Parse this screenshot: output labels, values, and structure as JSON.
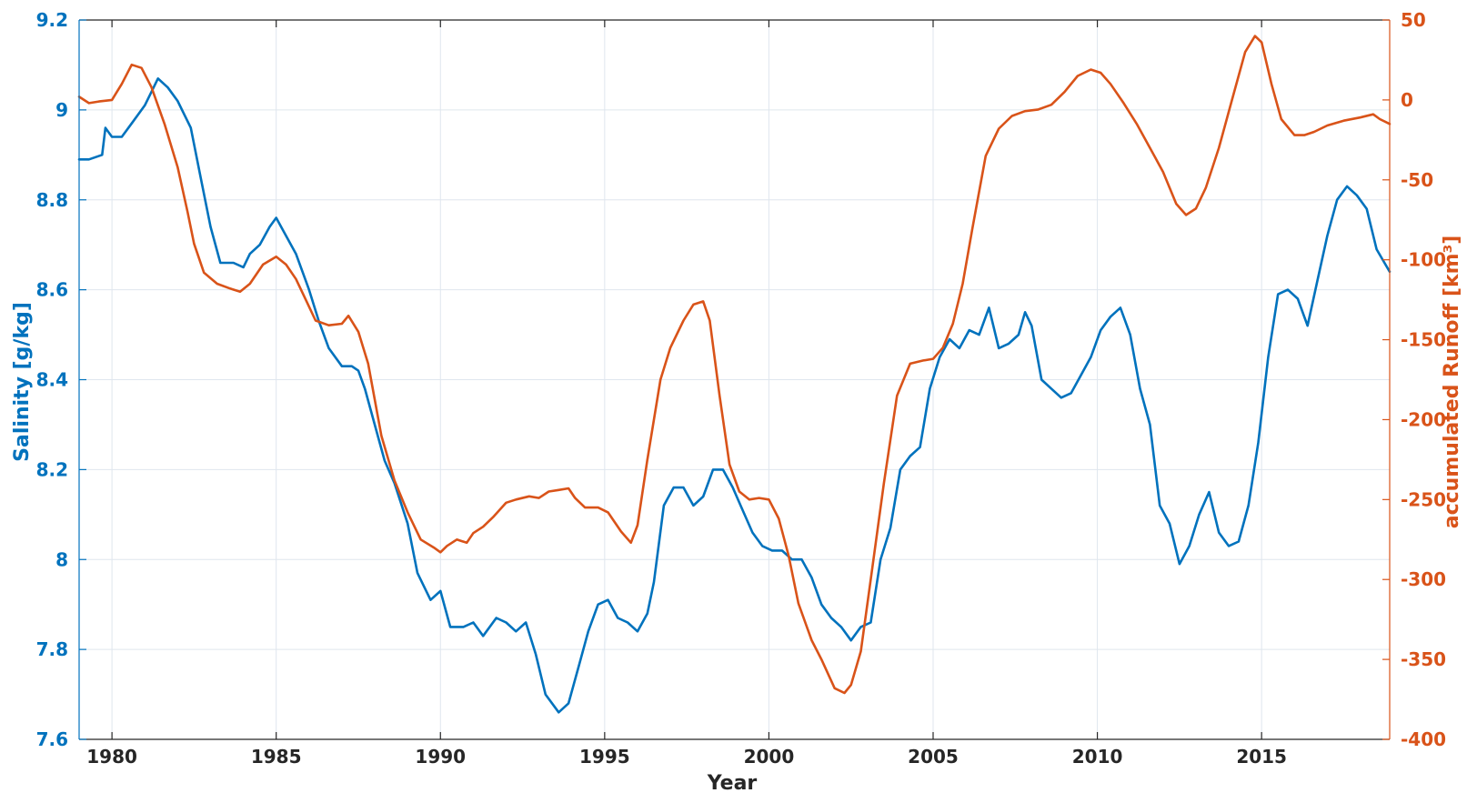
{
  "chart_data": {
    "type": "line",
    "xlabel": "Year",
    "ylabel_left": "Salinity [g/kg]",
    "ylabel_right": "accumulated Runoff [km³]",
    "xlim": [
      1979.0,
      2018.9
    ],
    "ylim_left": [
      7.6,
      9.2
    ],
    "ylim_right": [
      -400,
      50
    ],
    "x_ticks": [
      1980,
      1985,
      1990,
      1995,
      2000,
      2005,
      2010,
      2015
    ],
    "y_left_ticks": [
      "7.6",
      "7.8",
      "8",
      "8.2",
      "8.4",
      "8.6",
      "8.8",
      "9",
      "9.2"
    ],
    "y_right_ticks": [
      "-400",
      "-350",
      "-300",
      "-250",
      "-200",
      "-150",
      "-100",
      "-50",
      "0",
      "50"
    ],
    "grid": true,
    "colors": {
      "salinity": "#0072BD",
      "runoff": "#D95319",
      "axis_x": "#262626"
    },
    "series": [
      {
        "axis": "left",
        "x": [
          1979.0,
          1979.3,
          1979.7,
          1979.8,
          1980.0,
          1980.3,
          1980.6,
          1981.0,
          1981.2,
          1981.4,
          1981.7,
          1982.0,
          1982.4,
          1982.7,
          1983.0,
          1983.3,
          1983.7,
          1984.0,
          1984.2,
          1984.5,
          1984.8,
          1985.0,
          1985.3,
          1985.6,
          1986.0,
          1986.3,
          1986.6,
          1987.0,
          1987.3,
          1987.5,
          1987.7,
          1988.0,
          1988.3,
          1988.6,
          1989.0,
          1989.3,
          1989.7,
          1990.0,
          1990.3,
          1990.7,
          1991.0,
          1991.3,
          1991.7,
          1992.0,
          1992.3,
          1992.6,
          1992.9,
          1993.2,
          1993.6,
          1993.9,
          1994.2,
          1994.5,
          1994.8,
          1995.1,
          1995.4,
          1995.7,
          1996.0,
          1996.3,
          1996.5,
          1996.8,
          1997.1,
          1997.4,
          1997.7,
          1998.0,
          1998.3,
          1998.6,
          1998.9,
          1999.2,
          1999.5,
          1999.8,
          2000.1,
          2000.4,
          2000.7,
          2001.0,
          2001.3,
          2001.6,
          2001.9,
          2002.2,
          2002.5,
          2002.8,
          2003.1,
          2003.4,
          2003.7,
          2004.0,
          2004.3,
          2004.6,
          2004.9,
          2005.2,
          2005.5,
          2005.8,
          2006.1,
          2006.4,
          2006.7,
          2007.0,
          2007.3,
          2007.6,
          2007.8,
          2008.0,
          2008.3,
          2008.6,
          2008.9,
          2009.2,
          2009.5,
          2009.8,
          2010.1,
          2010.4,
          2010.7,
          2011.0,
          2011.3,
          2011.6,
          2011.9,
          2012.2,
          2012.5,
          2012.8,
          2013.1,
          2013.4,
          2013.7,
          2014.0,
          2014.3,
          2014.6,
          2014.9,
          2015.2,
          2015.5,
          2015.8,
          2016.1,
          2016.4,
          2016.7,
          2017.0,
          2017.3,
          2017.6,
          2017.9,
          2018.2,
          2018.5,
          2018.9
        ],
        "values": [
          8.89,
          8.89,
          8.9,
          8.96,
          8.94,
          8.94,
          8.97,
          9.01,
          9.04,
          9.07,
          9.05,
          9.02,
          8.96,
          8.85,
          8.74,
          8.66,
          8.66,
          8.65,
          8.68,
          8.7,
          8.74,
          8.76,
          8.72,
          8.68,
          8.6,
          8.53,
          8.47,
          8.43,
          8.43,
          8.42,
          8.38,
          8.3,
          8.22,
          8.17,
          8.08,
          7.97,
          7.91,
          7.93,
          7.85,
          7.85,
          7.86,
          7.83,
          7.87,
          7.86,
          7.84,
          7.86,
          7.79,
          7.7,
          7.66,
          7.68,
          7.76,
          7.84,
          7.9,
          7.91,
          7.87,
          7.86,
          7.84,
          7.88,
          7.95,
          8.12,
          8.16,
          8.16,
          8.12,
          8.14,
          8.2,
          8.2,
          8.16,
          8.11,
          8.06,
          8.03,
          8.02,
          8.02,
          8.0,
          8.0,
          7.96,
          7.9,
          7.87,
          7.85,
          7.82,
          7.85,
          7.86,
          8.0,
          8.07,
          8.2,
          8.23,
          8.25,
          8.38,
          8.45,
          8.49,
          8.47,
          8.51,
          8.5,
          8.56,
          8.47,
          8.48,
          8.5,
          8.55,
          8.52,
          8.4,
          8.38,
          8.36,
          8.37,
          8.41,
          8.45,
          8.51,
          8.54,
          8.56,
          8.5,
          8.38,
          8.3,
          8.12,
          8.08,
          7.99,
          8.03,
          8.1,
          8.15,
          8.06,
          8.03,
          8.04,
          8.12,
          8.26,
          8.45,
          8.59,
          8.6,
          8.58,
          8.52,
          8.62,
          8.72,
          8.8,
          8.83,
          8.81,
          8.78,
          8.69,
          8.64
        ]
      },
      {
        "axis": "right",
        "x": [
          1979.0,
          1979.3,
          1979.6,
          1980.0,
          1980.3,
          1980.6,
          1980.9,
          1981.2,
          1981.6,
          1982.0,
          1982.3,
          1982.5,
          1982.8,
          1983.2,
          1983.6,
          1983.9,
          1984.2,
          1984.6,
          1985.0,
          1985.3,
          1985.6,
          1985.9,
          1986.2,
          1986.6,
          1987.0,
          1987.2,
          1987.5,
          1987.8,
          1988.2,
          1988.6,
          1989.0,
          1989.4,
          1989.8,
          1990.0,
          1990.2,
          1990.5,
          1990.8,
          1991.0,
          1991.3,
          1991.6,
          1992.0,
          1992.3,
          1992.7,
          1993.0,
          1993.3,
          1993.6,
          1993.9,
          1994.1,
          1994.4,
          1994.8,
          1995.1,
          1995.5,
          1995.8,
          1996.0,
          1996.3,
          1996.7,
          1997.0,
          1997.4,
          1997.7,
          1998.0,
          1998.2,
          1998.5,
          1998.8,
          1999.1,
          1999.4,
          1999.7,
          2000.0,
          2000.3,
          2000.6,
          2000.9,
          2001.3,
          2001.6,
          2002.0,
          2002.3,
          2002.5,
          2002.8,
          2003.1,
          2003.5,
          2003.9,
          2004.3,
          2004.7,
          2005.0,
          2005.3,
          2005.6,
          2005.9,
          2006.2,
          2006.6,
          2007.0,
          2007.4,
          2007.8,
          2008.2,
          2008.6,
          2009.0,
          2009.4,
          2009.8,
          2010.1,
          2010.4,
          2010.8,
          2011.2,
          2011.6,
          2012.0,
          2012.4,
          2012.7,
          2013.0,
          2013.3,
          2013.7,
          2014.1,
          2014.5,
          2014.8,
          2015.0,
          2015.3,
          2015.6,
          2016.0,
          2016.3,
          2016.6,
          2017.0,
          2017.5,
          2018.0,
          2018.4,
          2018.6,
          2018.9
        ],
        "values": [
          2,
          -2,
          -1,
          0,
          10,
          22,
          20,
          8,
          -15,
          -42,
          -70,
          -90,
          -108,
          -115,
          -118,
          -120,
          -115,
          -103,
          -98,
          -103,
          -112,
          -125,
          -138,
          -141,
          -140,
          -135,
          -145,
          -165,
          -210,
          -238,
          -258,
          -275,
          -280,
          -283,
          -279,
          -275,
          -277,
          -271,
          -267,
          -261,
          -252,
          -250,
          -248,
          -249,
          -245,
          -244,
          -243,
          -249,
          -255,
          -255,
          -258,
          -270,
          -277,
          -266,
          -225,
          -175,
          -155,
          -138,
          -128,
          -126,
          -138,
          -185,
          -228,
          -245,
          -250,
          -249,
          -250,
          -262,
          -285,
          -315,
          -338,
          -350,
          -368,
          -371,
          -366,
          -345,
          -300,
          -240,
          -185,
          -165,
          -163,
          -162,
          -155,
          -140,
          -115,
          -80,
          -35,
          -18,
          -10,
          -7,
          -6,
          -3,
          5,
          15,
          19,
          17,
          10,
          -2,
          -15,
          -30,
          -45,
          -65,
          -72,
          -68,
          -55,
          -30,
          0,
          30,
          40,
          36,
          10,
          -12,
          -22,
          -22,
          -20,
          -16,
          -13,
          -11,
          -9,
          -12,
          -15
        ]
      }
    ]
  }
}
